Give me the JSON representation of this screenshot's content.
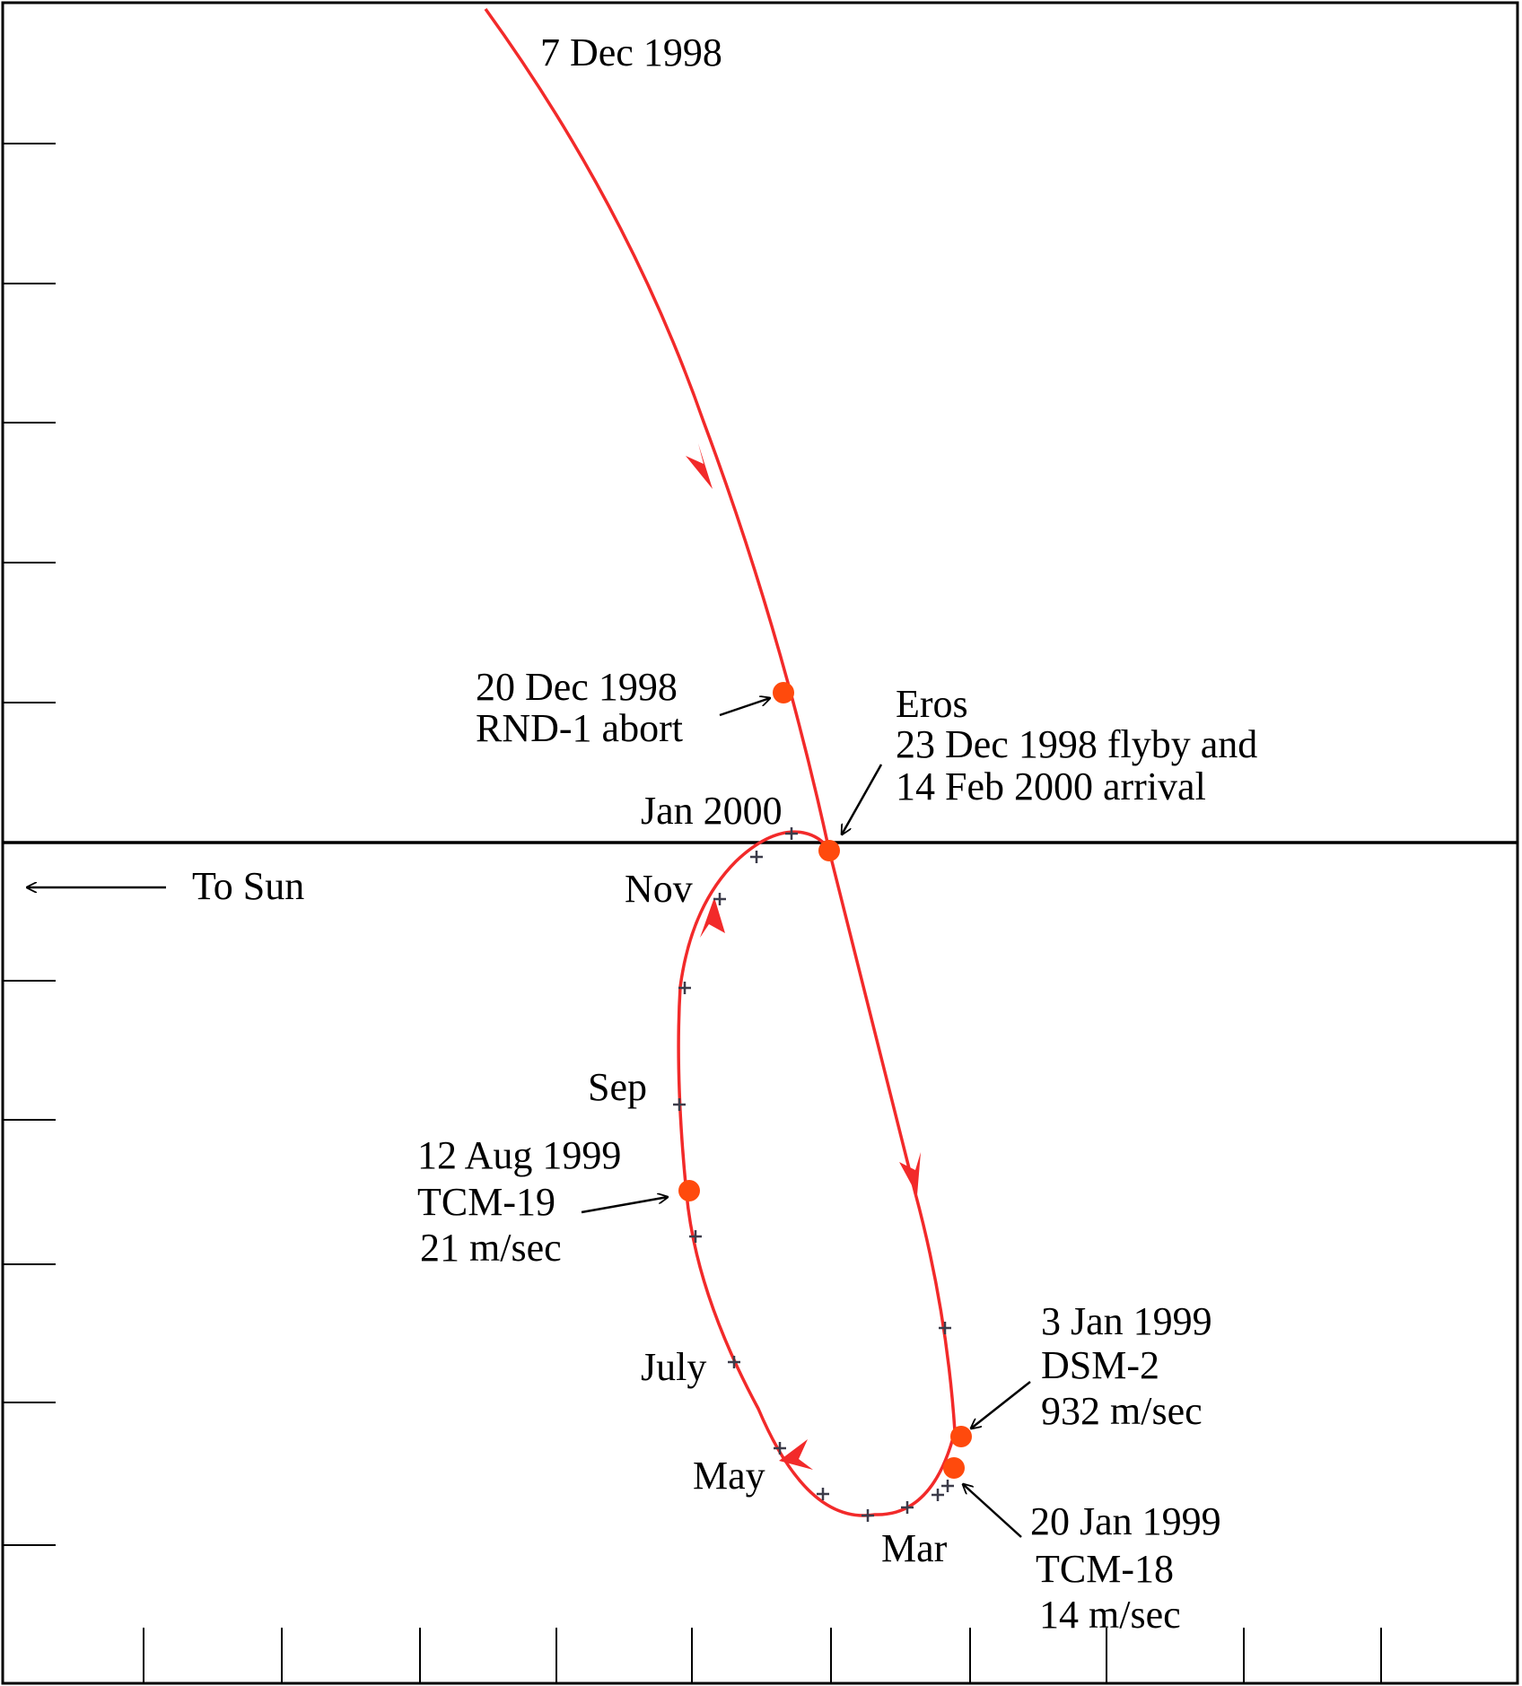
{
  "colors": {
    "trajectory": "#f22a2a",
    "event_marker": "#ff4a0d",
    "month_marker": "#3c3c4a",
    "axis": "#000000"
  },
  "labels": {
    "start_date": "7 Dec 1998",
    "jan_2000": "Jan 2000",
    "nov": "Nov",
    "sep": "Sep",
    "july": "July",
    "may": "May",
    "mar": "Mar",
    "to_sun": "To Sun"
  },
  "events": {
    "rnd1": {
      "date": "20 Dec 1998",
      "name": "RND-1 abort"
    },
    "eros": {
      "name": "Eros",
      "line1": "23 Dec 1998 flyby and",
      "line2": "14 Feb 2000 arrival"
    },
    "tcm19": {
      "date": "12 Aug 1999",
      "name": "TCM-19",
      "dv": "21 m/sec"
    },
    "dsm2": {
      "date": "3 Jan 1999",
      "name": "DSM-2",
      "dv": "932 m/sec"
    },
    "tcm18": {
      "date": "20 Jan 1999",
      "name": "TCM-18",
      "dv": "14 m/sec"
    }
  }
}
